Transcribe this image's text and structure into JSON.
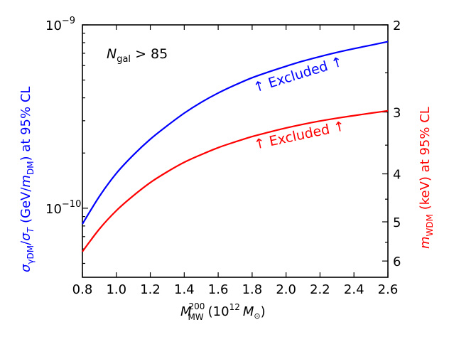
{
  "chart_data": {
    "type": "line",
    "annotation": {
      "symbol": "N",
      "subscript": "gal",
      "relation": "> 85"
    },
    "xaxis": {
      "label": {
        "symbol": "M",
        "superscript": "200",
        "subscript": "MW",
        "units_prefix": "(10",
        "units_exp": "12",
        "units_symbol": "M",
        "units_sub": "⊙",
        "units_close": ")"
      },
      "range": [
        0.8,
        2.6
      ],
      "ticks": [
        0.8,
        1.0,
        1.2,
        1.4,
        1.6,
        1.8,
        2.0,
        2.2,
        2.4,
        2.6
      ],
      "tick_labels": [
        "0.8",
        "1.0",
        "1.2",
        "1.4",
        "1.6",
        "1.8",
        "2.0",
        "2.2",
        "2.4",
        "2.6"
      ]
    },
    "yaxis_left": {
      "scale": "log",
      "range": [
        4.2e-11,
        1e-09
      ],
      "label": {
        "sym1": "σ",
        "sub1": "γDM",
        "slash1": "/",
        "sym2": "σ",
        "sub2": "T",
        "paren": "(GeV/",
        "sym3": "m",
        "sub3": "DM",
        "close": ") at 95% CL"
      },
      "color": "#0000ff",
      "ticks": [
        {
          "value": 1e-09,
          "base": "10",
          "exp": "−9"
        },
        {
          "value": 1e-10,
          "base": "10",
          "exp": "−10"
        }
      ]
    },
    "yaxis_right": {
      "label": {
        "symbol": "m",
        "subscript": "WDM",
        "rest": " (keV) at 95% CL"
      },
      "color": "#ff0000",
      "mapping": "m_WDM relates to the left axis as sigma = 6.5e-9 * m^-2.7",
      "ticks": [
        2,
        3,
        4,
        5,
        6
      ],
      "tick_labels": [
        "2",
        "3",
        "4",
        "5",
        "6"
      ]
    },
    "series": [
      {
        "name": "sigma_gammaDM_limit",
        "color": "#0000ff",
        "axis": "left",
        "label": "↑ Excluded ↑",
        "x": [
          0.8,
          0.9,
          1.0,
          1.1,
          1.2,
          1.3,
          1.4,
          1.5,
          1.6,
          1.7,
          1.8,
          1.9,
          2.0,
          2.1,
          2.2,
          2.3,
          2.4,
          2.5,
          2.6
        ],
        "y": [
          8.2e-11,
          1.16e-10,
          1.55e-10,
          1.95e-10,
          2.38e-10,
          2.82e-10,
          3.3e-10,
          3.78e-10,
          4.25e-10,
          4.7e-10,
          5.15e-10,
          5.55e-10,
          5.95e-10,
          6.35e-10,
          6.72e-10,
          7.08e-10,
          7.42e-10,
          7.75e-10,
          8.1e-10
        ]
      },
      {
        "name": "m_WDM_limit",
        "color": "#ff0000",
        "axis": "left",
        "label": "↑ Excluded ↑",
        "x": [
          0.8,
          0.9,
          1.0,
          1.1,
          1.2,
          1.3,
          1.4,
          1.5,
          1.6,
          1.7,
          1.8,
          1.9,
          2.0,
          2.1,
          2.2,
          2.3,
          2.4,
          2.5,
          2.6
        ],
        "y": [
          5.8e-11,
          7.7e-11,
          9.7e-11,
          1.17e-10,
          1.38e-10,
          1.58e-10,
          1.78e-10,
          1.96e-10,
          2.14e-10,
          2.3e-10,
          2.46e-10,
          2.6e-10,
          2.74e-10,
          2.87e-10,
          2.99e-10,
          3.1e-10,
          3.2e-10,
          3.3e-10,
          3.4e-10
        ]
      }
    ]
  }
}
